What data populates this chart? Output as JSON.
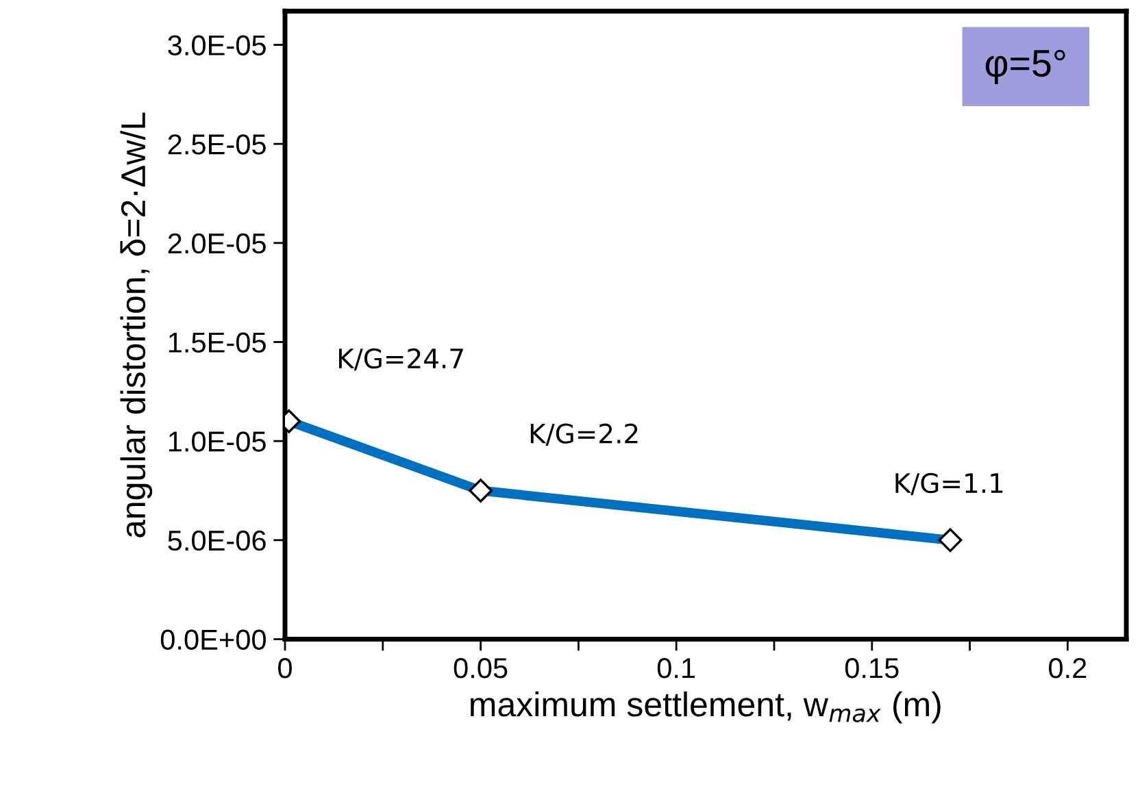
{
  "chart_data": {
    "type": "line",
    "xlabel": "maximum settlement, w$_{max}$ (m)",
    "ylabel": "angular distortion, δ=2·Δw/L",
    "x": [
      0.001,
      0.05,
      0.17
    ],
    "series": [
      {
        "color": "#0070c0",
        "values": [
          1.1e-05,
          7.5e-06,
          5e-06
        ]
      }
    ],
    "marker": "diamond",
    "line_style": "solid",
    "grid": false,
    "legend": false,
    "xlim": [
      0,
      0.215
    ],
    "ylim": [
      0,
      3.17e-05
    ],
    "xticks": [
      0,
      {
        "value": 0.025,
        "label": null
      },
      0.05,
      {
        "value": 0.075,
        "label": null
      },
      0.1,
      {
        "value": 0.125,
        "label": null
      },
      0.15,
      {
        "value": 0.175,
        "label": null
      },
      0.2
    ],
    "yticks": [
      {
        "value": 0,
        "label": "0.0E+00"
      },
      {
        "value": 5e-06,
        "label": "5.0E-06"
      },
      {
        "value": 1e-05,
        "label": "1.0E-05"
      },
      {
        "value": 1.5e-05,
        "label": "1.5E-05"
      },
      {
        "value": 2e-05,
        "label": "2.0E-05"
      },
      {
        "value": 2.5e-05,
        "label": "2.5E-05"
      },
      {
        "value": 3e-05,
        "label": "3.0E-05"
      }
    ],
    "annotations": [
      {
        "text": "K/G=24.7",
        "x": 0.001,
        "y": 1.1e-05
      },
      {
        "text": "K/G=2.2",
        "x": 0.05,
        "y": 7.5e-06
      },
      {
        "text": "K/G=1.1",
        "x": 0.17,
        "y": 5e-06
      },
      "φ=5°"
    ]
  }
}
